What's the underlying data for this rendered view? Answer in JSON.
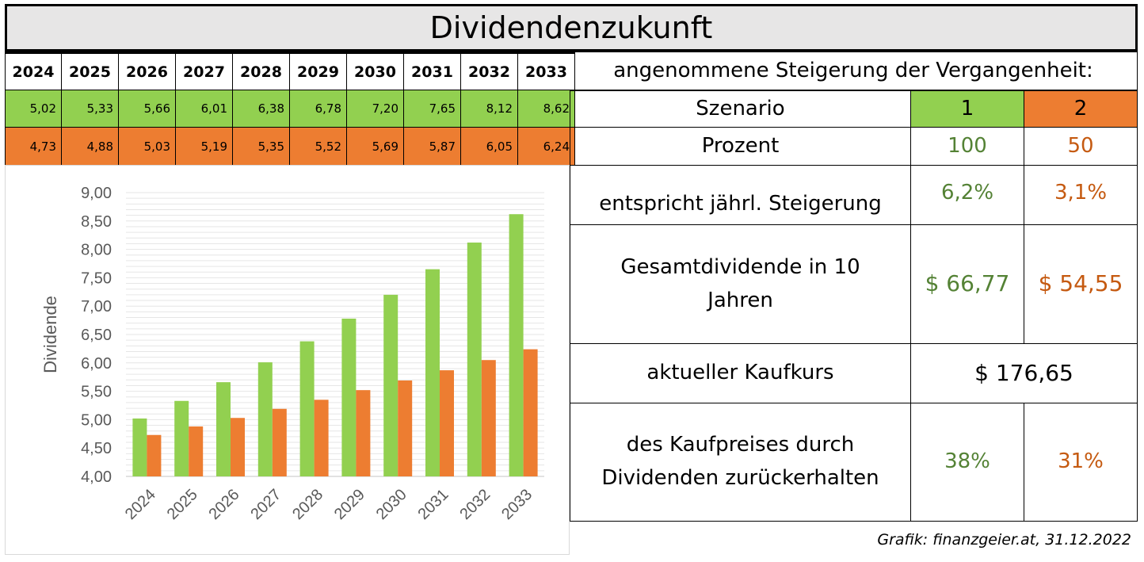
{
  "title": "Dividendenzukunft",
  "table": {
    "years": [
      "2024",
      "2025",
      "2026",
      "2027",
      "2028",
      "2029",
      "2030",
      "2031",
      "2032",
      "2033"
    ],
    "row_scenario1": [
      "5,02",
      "5,33",
      "5,66",
      "6,01",
      "6,38",
      "6,78",
      "7,20",
      "7,65",
      "8,12",
      "8,62"
    ],
    "row_scenario2": [
      "4,73",
      "4,88",
      "5,03",
      "5,19",
      "5,35",
      "5,52",
      "5,69",
      "5,87",
      "6,05",
      "6,24"
    ]
  },
  "right": {
    "header": "angenommene Steigerung der Vergangenheit:",
    "szenario_label": "Szenario",
    "szenario_1": "1",
    "szenario_2": "2",
    "prozent_label": "Prozent",
    "prozent_1": "100",
    "prozent_2": "50",
    "steigerung_label": "entspricht jährl. Steigerung",
    "steigerung_1": "6,2%",
    "steigerung_2": "3,1%",
    "gesamt_label_line1": "Gesamtdividende in 10",
    "gesamt_label_line2": "Jahren",
    "gesamt_1": "$ 66,77",
    "gesamt_2": "$ 54,55",
    "kaufkurs_label": "aktueller Kaufkurs",
    "kaufkurs_value": "$ 176,65",
    "rueck_label_line1": "des Kaufpreises durch",
    "rueck_label_line2": "Dividenden zurückerhalten",
    "rueck_1": "38%",
    "rueck_2": "31%"
  },
  "credit": "Grafik: finanzgeier.at, 31.12.2022",
  "colors": {
    "scenario1": "#92d050",
    "scenario2": "#ed7d31",
    "text_scenario1": "#548235",
    "text_scenario2": "#c55a11"
  },
  "chart_data": {
    "type": "bar",
    "title": "",
    "xlabel": "",
    "ylabel": "Dividende",
    "categories": [
      "2024",
      "2025",
      "2026",
      "2027",
      "2028",
      "2029",
      "2030",
      "2031",
      "2032",
      "2033"
    ],
    "series": [
      {
        "values": [
          5.02,
          5.33,
          5.66,
          6.01,
          6.38,
          6.78,
          7.2,
          7.65,
          8.12,
          8.62
        ],
        "color": "#92d050"
      },
      {
        "values": [
          4.73,
          4.88,
          5.03,
          5.19,
          5.35,
          5.52,
          5.69,
          5.87,
          6.05,
          6.24
        ],
        "color": "#ed7d31"
      }
    ],
    "ylim": [
      4.0,
      9.0
    ],
    "yticks": [
      "4,00",
      "4,50",
      "5,00",
      "5,50",
      "6,00",
      "6,50",
      "7,00",
      "7,50",
      "8,00",
      "8,50",
      "9,00"
    ],
    "grid": true,
    "legend": "none"
  }
}
